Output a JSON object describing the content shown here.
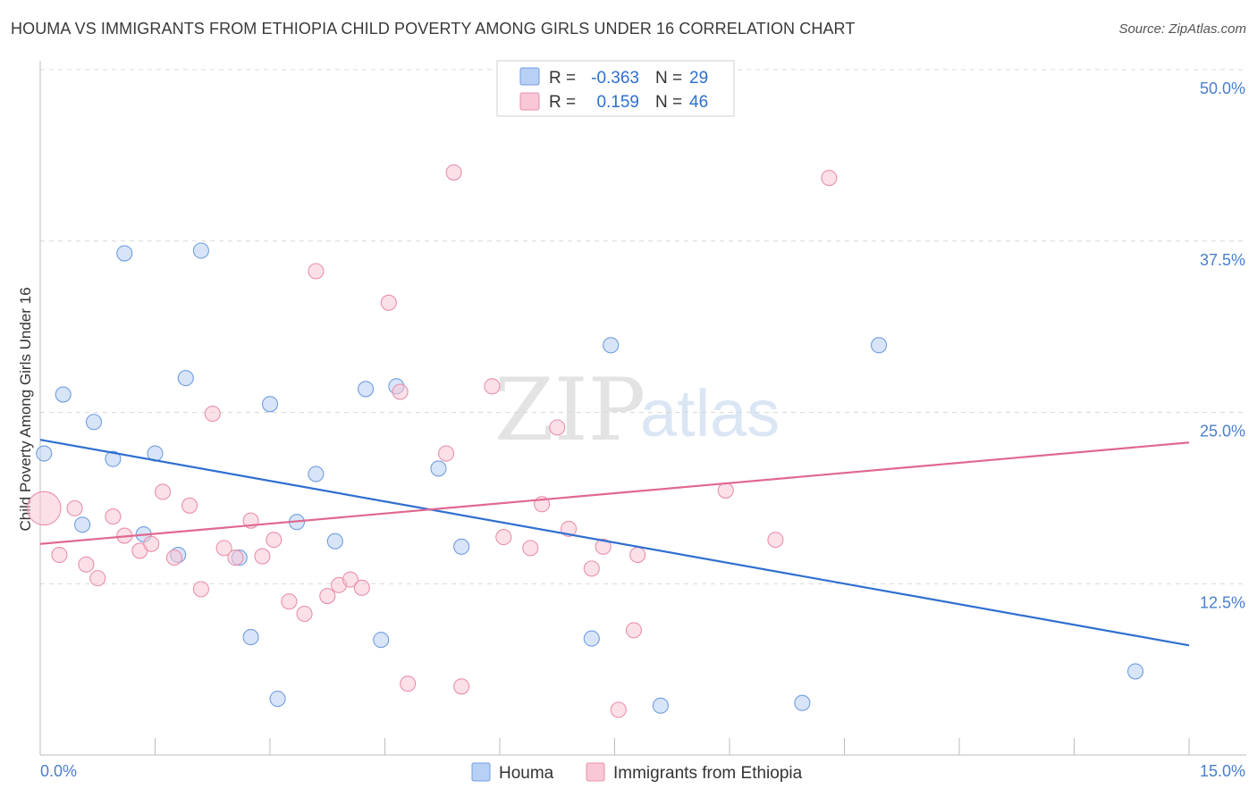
{
  "title": "HOUMA VS IMMIGRANTS FROM ETHIOPIA CHILD POVERTY AMONG GIRLS UNDER 16 CORRELATION CHART",
  "source": "Source: ZipAtlas.com",
  "watermark": {
    "zip": "ZIP",
    "atlas": "atlas"
  },
  "colors": {
    "houma_fill": "#b8d0f3",
    "houma_stroke": "#6f9ee0",
    "houma_line": "#2f6fd0",
    "ethiopia_fill": "#f9c7d5",
    "ethiopia_stroke": "#e890aa",
    "ethiopia_line": "#e06890",
    "tick_label": "#4a7fcf",
    "grid": "#d8d8d8"
  },
  "legend_top": {
    "rows": [
      {
        "r_label": "R =",
        "r_value": "-0.363",
        "n_label": "N =",
        "n_value": "29"
      },
      {
        "r_label": "R =",
        "r_value": "0.159",
        "n_label": "N =",
        "n_value": "46"
      }
    ]
  },
  "chart_data": {
    "type": "scatter",
    "title": "HOUMA VS IMMIGRANTS FROM ETHIOPIA CHILD POVERTY AMONG GIRLS UNDER 16 CORRELATION CHART",
    "xlabel": "",
    "ylabel": "Child Poverty Among Girls Under 16",
    "xlim": [
      0,
      15
    ],
    "ylim": [
      0,
      50
    ],
    "x_tick_labels": [
      "0.0%",
      "15.0%"
    ],
    "y_ticks": [
      12.5,
      25.0,
      37.5,
      50.0
    ],
    "y_tick_labels": [
      "12.5%",
      "25.0%",
      "37.5%",
      "50.0%"
    ],
    "x_minor_ticks": [
      0,
      1.5,
      3,
      4.5,
      6,
      7.5,
      9,
      10.5,
      12,
      13.5,
      15
    ],
    "series": [
      {
        "name": "Houma",
        "r": -0.363,
        "n": 29,
        "trend": {
          "x": [
            0,
            15
          ],
          "y": [
            23.0,
            8.0
          ]
        },
        "points": [
          {
            "x": 0.05,
            "y": 22.0,
            "s": 1
          },
          {
            "x": 0.3,
            "y": 26.3,
            "s": 1
          },
          {
            "x": 0.7,
            "y": 24.3,
            "s": 1
          },
          {
            "x": 0.95,
            "y": 21.6,
            "s": 1
          },
          {
            "x": 1.1,
            "y": 36.6,
            "s": 1
          },
          {
            "x": 2.1,
            "y": 36.8,
            "s": 1
          },
          {
            "x": 1.5,
            "y": 22.0,
            "s": 1
          },
          {
            "x": 1.9,
            "y": 27.5,
            "s": 1
          },
          {
            "x": 0.55,
            "y": 16.8,
            "s": 1
          },
          {
            "x": 1.35,
            "y": 16.1,
            "s": 1
          },
          {
            "x": 1.8,
            "y": 14.6,
            "s": 1
          },
          {
            "x": 2.6,
            "y": 14.4,
            "s": 1
          },
          {
            "x": 3.0,
            "y": 25.6,
            "s": 1
          },
          {
            "x": 3.6,
            "y": 20.5,
            "s": 1
          },
          {
            "x": 3.35,
            "y": 17.0,
            "s": 1
          },
          {
            "x": 3.85,
            "y": 15.6,
            "s": 1
          },
          {
            "x": 4.25,
            "y": 26.7,
            "s": 1
          },
          {
            "x": 4.65,
            "y": 26.9,
            "s": 1
          },
          {
            "x": 5.2,
            "y": 20.9,
            "s": 1
          },
          {
            "x": 5.5,
            "y": 15.2,
            "s": 1
          },
          {
            "x": 7.45,
            "y": 29.9,
            "s": 1
          },
          {
            "x": 10.95,
            "y": 29.9,
            "s": 1
          },
          {
            "x": 2.75,
            "y": 8.6,
            "s": 1
          },
          {
            "x": 4.45,
            "y": 8.4,
            "s": 1
          },
          {
            "x": 7.2,
            "y": 8.5,
            "s": 1
          },
          {
            "x": 3.1,
            "y": 4.1,
            "s": 1
          },
          {
            "x": 8.1,
            "y": 3.6,
            "s": 1
          },
          {
            "x": 9.95,
            "y": 3.8,
            "s": 1
          },
          {
            "x": 14.3,
            "y": 6.1,
            "s": 1
          }
        ]
      },
      {
        "name": "Immigrants from Ethiopia",
        "r": 0.159,
        "n": 46,
        "trend": {
          "x": [
            0,
            15
          ],
          "y": [
            15.4,
            22.8
          ]
        },
        "points": [
          {
            "x": 0.05,
            "y": 18.0,
            "s": 2.2
          },
          {
            "x": 0.45,
            "y": 18.0,
            "s": 1
          },
          {
            "x": 0.25,
            "y": 14.6,
            "s": 1
          },
          {
            "x": 0.6,
            "y": 13.9,
            "s": 1
          },
          {
            "x": 0.75,
            "y": 12.9,
            "s": 1
          },
          {
            "x": 0.95,
            "y": 17.4,
            "s": 1
          },
          {
            "x": 1.1,
            "y": 16.0,
            "s": 1
          },
          {
            "x": 1.3,
            "y": 14.9,
            "s": 1
          },
          {
            "x": 1.45,
            "y": 15.4,
            "s": 1
          },
          {
            "x": 1.6,
            "y": 19.2,
            "s": 1
          },
          {
            "x": 1.75,
            "y": 14.4,
            "s": 1
          },
          {
            "x": 1.95,
            "y": 18.2,
            "s": 1
          },
          {
            "x": 2.1,
            "y": 12.1,
            "s": 1
          },
          {
            "x": 2.25,
            "y": 24.9,
            "s": 1
          },
          {
            "x": 2.4,
            "y": 15.1,
            "s": 1
          },
          {
            "x": 2.55,
            "y": 14.4,
            "s": 1
          },
          {
            "x": 2.75,
            "y": 17.1,
            "s": 1
          },
          {
            "x": 2.9,
            "y": 14.5,
            "s": 1
          },
          {
            "x": 3.05,
            "y": 15.7,
            "s": 1
          },
          {
            "x": 3.25,
            "y": 11.2,
            "s": 1
          },
          {
            "x": 3.45,
            "y": 10.3,
            "s": 1
          },
          {
            "x": 3.6,
            "y": 35.3,
            "s": 1
          },
          {
            "x": 3.75,
            "y": 11.6,
            "s": 1
          },
          {
            "x": 3.9,
            "y": 12.4,
            "s": 1
          },
          {
            "x": 4.05,
            "y": 12.8,
            "s": 1
          },
          {
            "x": 4.2,
            "y": 12.2,
            "s": 1
          },
          {
            "x": 4.55,
            "y": 33.0,
            "s": 1
          },
          {
            "x": 4.7,
            "y": 26.5,
            "s": 1
          },
          {
            "x": 4.8,
            "y": 5.2,
            "s": 1
          },
          {
            "x": 5.3,
            "y": 22.0,
            "s": 1
          },
          {
            "x": 5.4,
            "y": 42.5,
            "s": 1
          },
          {
            "x": 5.5,
            "y": 5.0,
            "s": 1
          },
          {
            "x": 5.9,
            "y": 26.9,
            "s": 1
          },
          {
            "x": 6.05,
            "y": 15.9,
            "s": 1
          },
          {
            "x": 6.4,
            "y": 15.1,
            "s": 1
          },
          {
            "x": 6.55,
            "y": 18.3,
            "s": 1
          },
          {
            "x": 6.75,
            "y": 23.9,
            "s": 1
          },
          {
            "x": 6.9,
            "y": 16.5,
            "s": 1
          },
          {
            "x": 7.2,
            "y": 13.6,
            "s": 1
          },
          {
            "x": 7.35,
            "y": 15.2,
            "s": 1
          },
          {
            "x": 7.8,
            "y": 14.6,
            "s": 1
          },
          {
            "x": 7.75,
            "y": 9.1,
            "s": 1
          },
          {
            "x": 7.55,
            "y": 3.3,
            "s": 1
          },
          {
            "x": 8.95,
            "y": 19.3,
            "s": 1
          },
          {
            "x": 9.6,
            "y": 15.7,
            "s": 1
          },
          {
            "x": 10.3,
            "y": 42.1,
            "s": 1
          }
        ]
      }
    ]
  }
}
